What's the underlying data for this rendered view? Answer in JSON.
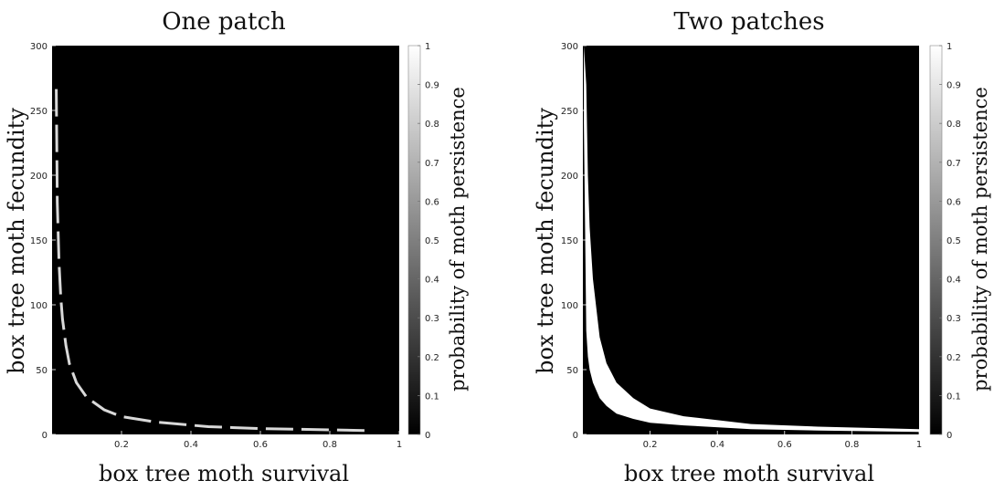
{
  "chart_data": [
    {
      "type": "heatmap",
      "title": "One patch",
      "xlabel": "box tree moth survival",
      "ylabel": "box tree moth fecundity",
      "xlim": [
        0,
        1
      ],
      "ylim": [
        0,
        300
      ],
      "x_ticks": [
        "0.2",
        "0.4",
        "0.6",
        "0.8",
        "1"
      ],
      "y_ticks": [
        "0",
        "50",
        "100",
        "150",
        "200",
        "250",
        "300"
      ],
      "colorbar": {
        "label": "probability of moth persistence",
        "range": [
          0,
          1
        ],
        "ticks": [
          "0",
          "0.1",
          "0.2",
          "0.3",
          "0.4",
          "0.5",
          "0.6",
          "0.7",
          "0.8",
          "0.9",
          "1"
        ],
        "colormap": "gray"
      },
      "background_value": 0,
      "persistence_band": {
        "value": 0.85,
        "x": [
          0.012,
          0.015,
          0.02,
          0.025,
          0.03,
          0.04,
          0.05,
          0.07,
          0.1,
          0.15,
          0.2,
          0.3,
          0.45,
          0.6,
          0.9
        ],
        "y_lower": [
          250,
          170,
          125,
          100,
          85,
          65,
          52,
          38,
          27,
          18,
          13,
          9,
          5.5,
          4,
          2.5
        ],
        "y_upper": [
          283,
          188,
          140,
          112,
          93,
          72,
          57,
          42,
          30,
          20,
          14.5,
          10,
          6.5,
          5,
          3.5
        ]
      }
    },
    {
      "type": "heatmap",
      "title": "Two patches",
      "xlabel": "box tree moth survival",
      "ylabel": "box tree moth fecundity",
      "xlim": [
        0,
        1
      ],
      "ylim": [
        0,
        300
      ],
      "x_ticks": [
        "0.2",
        "0.4",
        "0.6",
        "0.8",
        "1"
      ],
      "y_ticks": [
        "0",
        "50",
        "100",
        "150",
        "200",
        "250",
        "300"
      ],
      "colorbar": {
        "label": "probability of moth persistence",
        "range": [
          0,
          1
        ],
        "ticks": [
          "0",
          "0.1",
          "0.2",
          "0.3",
          "0.4",
          "0.5",
          "0.6",
          "0.7",
          "0.8",
          "0.9",
          "1"
        ],
        "colormap": "gray"
      },
      "background_value": 0,
      "persistence_band": {
        "value": 1,
        "x": [
          0.003,
          0.01,
          0.015,
          0.02,
          0.03,
          0.05,
          0.07,
          0.1,
          0.15,
          0.2,
          0.3,
          0.5,
          0.7,
          1.0
        ],
        "y_lower": [
          240,
          80,
          60,
          50,
          40,
          28,
          22,
          16,
          12,
          9,
          7,
          4,
          3,
          2
        ],
        "y_upper": [
          300,
          270,
          200,
          160,
          120,
          75,
          55,
          40,
          28,
          20,
          14,
          8,
          6,
          4
        ]
      }
    }
  ]
}
